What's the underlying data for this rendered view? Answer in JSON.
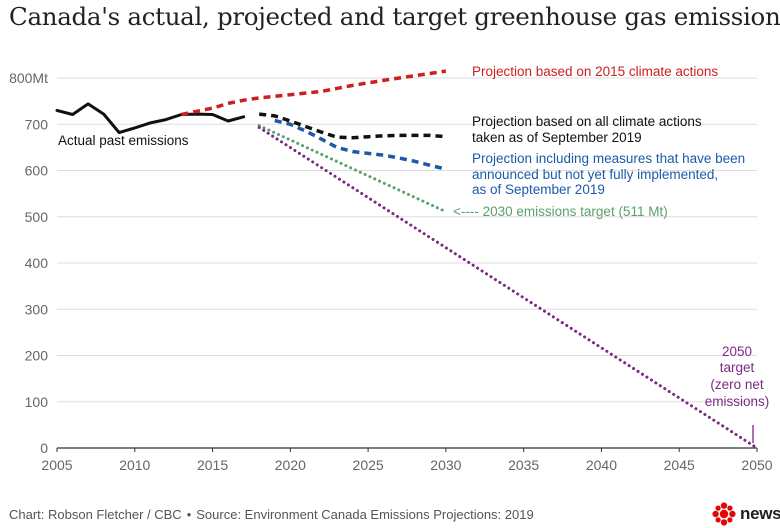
{
  "chart_data": {
    "type": "line",
    "title": "Canada's actual, projected and target greenhouse gas emissions",
    "xlim": [
      2005,
      2050
    ],
    "ylim": [
      0,
      800
    ],
    "x_ticks": [
      "2005",
      "2010",
      "2015",
      "2020",
      "2025",
      "2030",
      "2035",
      "2040",
      "2045",
      "2050"
    ],
    "y_ticks": [
      "0",
      "100",
      "200",
      "300",
      "400",
      "500",
      "600",
      "700",
      "800Mt"
    ],
    "grid": true,
    "series": [
      {
        "name": "Actual past emissions",
        "color": "#111111",
        "style": "solid",
        "x": [
          2005,
          2006,
          2007,
          2008,
          2009,
          2010,
          2011,
          2012,
          2013,
          2014,
          2015,
          2016,
          2017
        ],
        "y": [
          730,
          721,
          744,
          722,
          682,
          692,
          703,
          710,
          721,
          722,
          721,
          707,
          716
        ]
      },
      {
        "name": "Projection based on 2015 climate actions",
        "color": "#cc1f1f",
        "style": "dashed",
        "x": [
          2013,
          2015,
          2016,
          2017,
          2018,
          2020,
          2022,
          2024,
          2026,
          2028,
          2030
        ],
        "y": [
          721,
          735,
          745,
          752,
          757,
          764,
          771,
          784,
          795,
          805,
          815
        ]
      },
      {
        "name": "Projection based on all climate actions taken as of September 2019",
        "color": "#111111",
        "style": "dashed",
        "x": [
          2018,
          2019,
          2020,
          2021,
          2022,
          2023,
          2024,
          2025,
          2026,
          2027,
          2028,
          2029,
          2030
        ],
        "y": [
          722,
          718,
          707,
          695,
          683,
          672,
          671,
          673,
          675,
          676,
          676,
          676,
          673
        ]
      },
      {
        "name": "Projection including measures that have been announced but not yet fully implemented, as of September 2019",
        "color": "#1c5aa8",
        "style": "dashed",
        "x": [
          2019,
          2020,
          2021,
          2022,
          2023,
          2024,
          2025,
          2026,
          2027,
          2028,
          2029,
          2030
        ],
        "y": [
          708,
          700,
          685,
          668,
          650,
          641,
          637,
          633,
          627,
          620,
          611,
          603
        ]
      },
      {
        "name": "2030 emissions target (511 Mt)",
        "color": "#5aa06c",
        "style": "dotted",
        "x": [
          2018,
          2030
        ],
        "y": [
          697,
          511
        ]
      },
      {
        "name": "2050 target (zero net emissions)",
        "color": "#7b2a82",
        "style": "dotted",
        "x": [
          2018,
          2050
        ],
        "y": [
          693,
          0
        ]
      }
    ],
    "annotations": [
      {
        "text": "Actual past emissions",
        "color": "#111111"
      },
      {
        "text": "Projection based on 2015 climate actions",
        "color": "#cc1f1f"
      },
      {
        "text": "Projection based on all climate actions",
        "color": "#111111"
      },
      {
        "text": "taken as of September 2019",
        "color": "#111111"
      },
      {
        "text": "Projection including measures that have been",
        "color": "#1c5aa8"
      },
      {
        "text": "announced but not yet fully implemented,",
        "color": "#1c5aa8"
      },
      {
        "text": "as of September 2019",
        "color": "#1c5aa8"
      },
      {
        "text": "<---- 2030 emissions target (511 Mt)",
        "color": "#5aa06c"
      },
      {
        "text": "2050",
        "color": "#7b2a82"
      },
      {
        "text": "target",
        "color": "#7b2a82"
      },
      {
        "text": "(zero net",
        "color": "#7b2a82"
      },
      {
        "text": "emissions)",
        "color": "#7b2a82"
      }
    ]
  },
  "footer": {
    "credit": "Chart: Robson Fletcher / CBC",
    "separator": "•",
    "source": "Source: Environment Canada Emissions Projections: 2019"
  },
  "logo": {
    "text": "news",
    "color": "#e60505",
    "icon": "cbc-gem-icon"
  }
}
